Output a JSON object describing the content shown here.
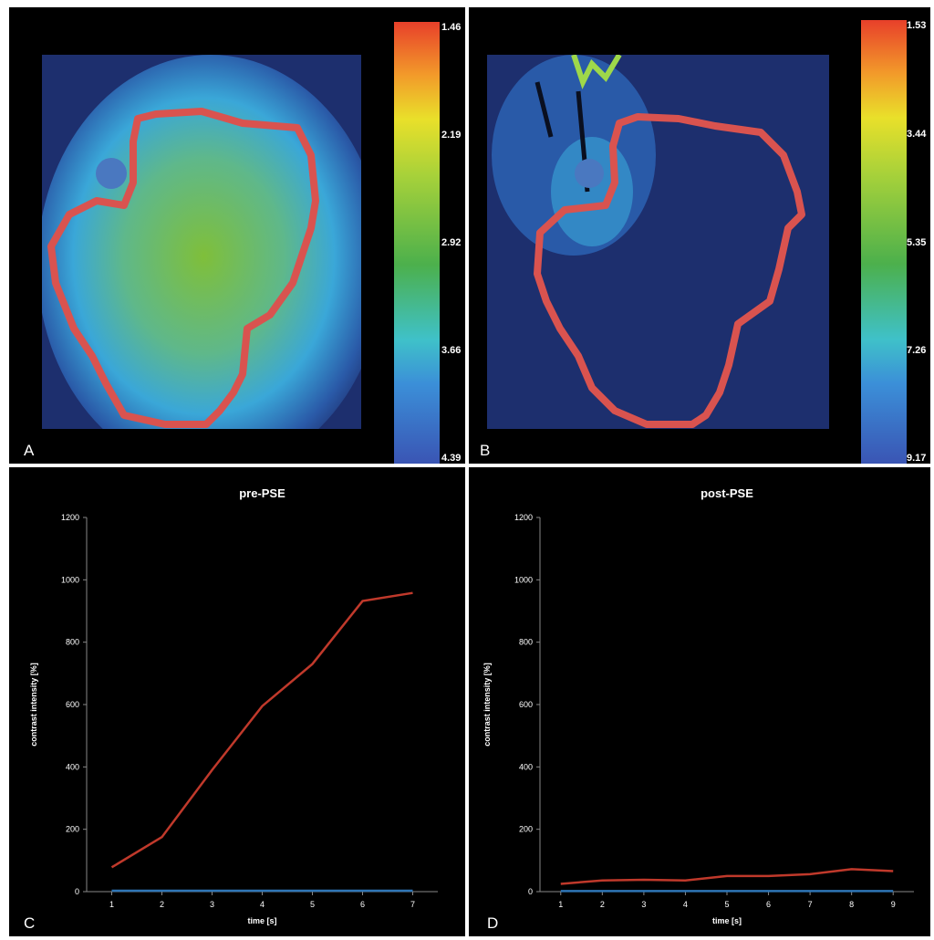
{
  "panels": {
    "A": {
      "letter": "A",
      "colorbar_ticks": [
        "1.46",
        "2.19",
        "2.92",
        "3.66",
        "4.39"
      ]
    },
    "B": {
      "letter": "B",
      "colorbar_ticks": [
        "1.53",
        "3.44",
        "5.35",
        "7.26",
        "9.17"
      ]
    },
    "C": {
      "letter": "C"
    },
    "D": {
      "letter": "D"
    }
  },
  "colors": {
    "roi_outline": "#d9534f",
    "series_red": "#c0392b",
    "series_blue": "#2e75b6",
    "axis": "#888888",
    "text": "#ffffff"
  },
  "chart_data": [
    {
      "type": "line",
      "title": "pre-PSE",
      "xlabel": "time [s]",
      "ylabel": "contrast intensity [%]",
      "x": [
        1,
        2,
        3,
        4,
        5,
        6,
        7
      ],
      "xlim": [
        0.5,
        7.5
      ],
      "ylim": [
        0,
        1200
      ],
      "yticks": [
        0,
        200,
        400,
        600,
        800,
        1000,
        1200
      ],
      "grid": false,
      "series": [
        {
          "color": "#c0392b",
          "values": [
            78,
            175,
            390,
            595,
            730,
            932,
            958
          ]
        },
        {
          "color": "#2e75b6",
          "values": [
            3,
            3,
            3,
            3,
            3,
            3,
            3
          ]
        }
      ]
    },
    {
      "type": "line",
      "title": "post-PSE",
      "xlabel": "time [s]",
      "ylabel": "contrast intensity [%]",
      "x": [
        1,
        2,
        3,
        4,
        5,
        6,
        7,
        8,
        9
      ],
      "xlim": [
        0.5,
        9.5
      ],
      "ylim": [
        0,
        1200
      ],
      "yticks": [
        0,
        200,
        400,
        600,
        800,
        1000,
        1200
      ],
      "grid": false,
      "series": [
        {
          "color": "#c0392b",
          "values": [
            25,
            36,
            38,
            36,
            50,
            50,
            56,
            72,
            66
          ]
        },
        {
          "color": "#2e75b6",
          "values": [
            2,
            2,
            2,
            2,
            2,
            2,
            2,
            2,
            2
          ]
        }
      ]
    }
  ]
}
